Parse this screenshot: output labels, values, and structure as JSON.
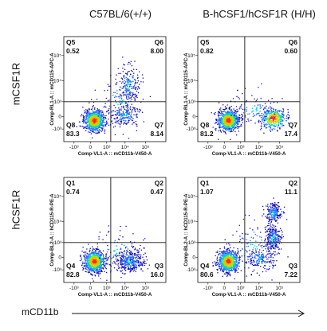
{
  "column_titles": [
    "C57BL/6(+/+)",
    "B-hCSF1/hCSF1R (H/H)"
  ],
  "row_labels": [
    "mCSF1R",
    "hCSF1R"
  ],
  "bottom_label": "mCD11b",
  "chart_data": [
    {
      "type": "scatter",
      "genotype": "C57BL/6(+/+)",
      "row": "mCSF1R",
      "xlabel": "Comp-VL1-A :: mCD11b-V450-A",
      "ylabel": "Comp-RL1-A :: mCD115-APC-A",
      "x_ticks": [
        "-10³",
        "0",
        "10³",
        "10⁴",
        "10⁵"
      ],
      "y_ticks": [
        "-10³",
        "0",
        "10³",
        "10⁴",
        "10⁵"
      ],
      "quadrants": [
        {
          "name": "Q5",
          "value": "0.52"
        },
        {
          "name": "Q6",
          "value": "8.00"
        },
        {
          "name": "Q7",
          "value": "8.14"
        },
        {
          "name": "Q8",
          "value": "83.3"
        }
      ]
    },
    {
      "type": "scatter",
      "genotype": "B-hCSF1/hCSF1R (H/H)",
      "row": "mCSF1R",
      "xlabel": "Comp-VL1-A :: mCD11b-V450-A",
      "ylabel": "Comp-RL1-A :: mCD115-APC-A",
      "x_ticks": [
        "-10³",
        "0",
        "10³",
        "10⁴",
        "10⁵"
      ],
      "y_ticks": [
        "-10³",
        "0",
        "10³",
        "10⁴",
        "10⁵"
      ],
      "quadrants": [
        {
          "name": "Q5",
          "value": "0.82"
        },
        {
          "name": "Q6",
          "value": "0.60"
        },
        {
          "name": "Q7",
          "value": "17.4"
        },
        {
          "name": "Q8",
          "value": "81.2"
        }
      ]
    },
    {
      "type": "scatter",
      "genotype": "C57BL/6(+/+)",
      "row": "hCSF1R",
      "xlabel": "Comp-VL1-A :: mCD11b-V450-A",
      "ylabel": "Comp-BL2-A :: hCD115-R-PE-A",
      "x_ticks": [
        "-10³",
        "0",
        "10³",
        "10⁴",
        "10⁵"
      ],
      "y_ticks": [
        "-10³",
        "0",
        "10³",
        "10⁴",
        "10⁵"
      ],
      "quadrants": [
        {
          "name": "Q1",
          "value": "0.74"
        },
        {
          "name": "Q2",
          "value": "0.47"
        },
        {
          "name": "Q3",
          "value": "16.0"
        },
        {
          "name": "Q4",
          "value": "82.8"
        }
      ]
    },
    {
      "type": "scatter",
      "genotype": "B-hCSF1/hCSF1R (H/H)",
      "row": "hCSF1R",
      "xlabel": "Comp-VL1-A :: mCD11b-V450-A",
      "ylabel": "Comp-BL2-A :: hCD115-R-PE-A",
      "x_ticks": [
        "-10³",
        "0",
        "10³",
        "10⁴",
        "10⁵"
      ],
      "y_ticks": [
        "-10³",
        "0",
        "10³",
        "10⁴",
        "10⁵"
      ],
      "quadrants": [
        {
          "name": "Q1",
          "value": "1.07"
        },
        {
          "name": "Q2",
          "value": "11.1"
        },
        {
          "name": "Q3",
          "value": "7.22"
        },
        {
          "name": "Q4",
          "value": "80.6"
        }
      ]
    }
  ]
}
